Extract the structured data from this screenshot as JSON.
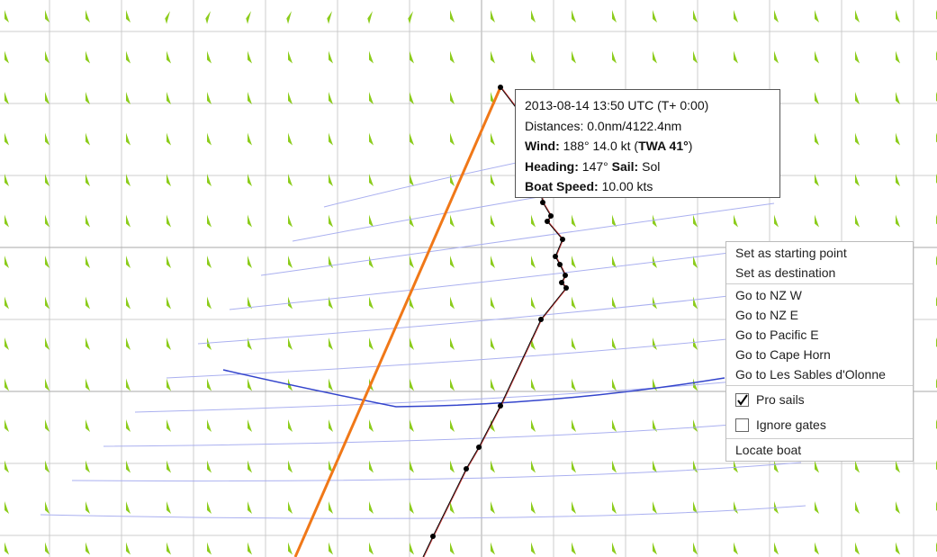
{
  "tooltip": {
    "time": "2013-08-14 13:50 UTC (T+ 0:00)",
    "distances": "Distances: 0.0nm/4122.4nm",
    "wind_label": "Wind:",
    "wind_value": "188° 14.0 kt (",
    "twa": "TWA 41°",
    "wind_close": ")",
    "heading_label": "Heading:",
    "heading_value": "147°",
    "sail_label": "Sail:",
    "sail_value": "Sol",
    "speed_label": "Boat Speed:",
    "speed_value": "10.00 kts"
  },
  "menu": {
    "groups": [
      {
        "items": [
          {
            "label": "Set as starting point"
          },
          {
            "label": "Set as destination"
          }
        ]
      },
      {
        "items": [
          {
            "label": "Go to NZ W"
          },
          {
            "label": "Go to NZ E"
          },
          {
            "label": "Go to Pacific E"
          },
          {
            "label": "Go to Cape Horn"
          },
          {
            "label": "Go to Les Sables d'Olonne"
          }
        ]
      },
      {
        "items": [
          {
            "label": "Pro sails",
            "checked": true
          },
          {
            "label": "Ignore gates",
            "checked": false
          }
        ]
      },
      {
        "items": [
          {
            "label": "Locate boat"
          }
        ]
      }
    ]
  }
}
